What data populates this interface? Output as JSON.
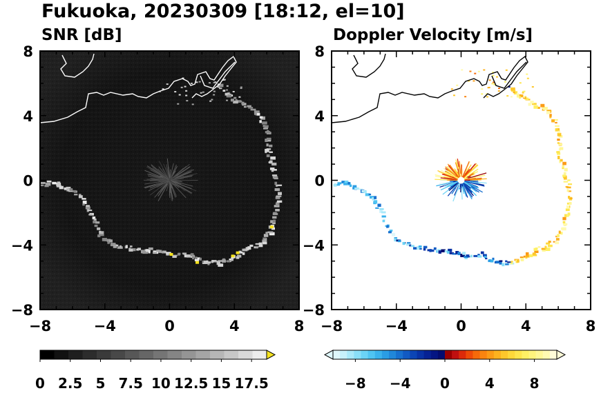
{
  "figure": {
    "title": "Fukuoka, 20230309 [18:12, el=10]"
  },
  "chart_data": [
    {
      "type": "heatmap",
      "title": "SNR [dB]",
      "xlim": [
        -8,
        8
      ],
      "ylim": [
        -8,
        8
      ],
      "xticks": [
        "−8",
        "−4",
        "0",
        "4",
        "8"
      ],
      "yticks": [
        "8",
        "4",
        "0",
        "−4",
        "−8"
      ],
      "colorbar": {
        "min": 0,
        "max": 18.75,
        "step": 1.25,
        "tick_labels": [
          "0",
          "2.5",
          "5",
          "7.5",
          "10",
          "12.5",
          "15",
          "17.5"
        ],
        "tick_values": [
          0,
          2.5,
          5,
          7.5,
          10,
          12.5,
          15,
          17.5
        ],
        "extend": "max",
        "extend_color": "#f5e21e",
        "colors": [
          "#000000",
          "#111111",
          "#1e1e1e",
          "#2c2c2c",
          "#3a3a3a",
          "#484848",
          "#575757",
          "#666666",
          "#757575",
          "#858585",
          "#959595",
          "#a5a5a5",
          "#b6b6b6",
          "#c7c7c7",
          "#d9d9d9",
          "#ececec"
        ]
      }
    },
    {
      "type": "heatmap",
      "title": "Doppler Velocity [m/s]",
      "xlim": [
        -8,
        8
      ],
      "ylim": [
        -8,
        8
      ],
      "xticks": [
        "−8",
        "−4",
        "0",
        "4",
        "8"
      ],
      "yticks": [
        "8",
        "4",
        "0",
        "−4",
        "−8"
      ],
      "colorbar": {
        "min": -10,
        "max": 10,
        "step": 0.5,
        "tick_labels": [
          "−8",
          "−4",
          "0",
          "4",
          "8"
        ],
        "tick_values": [
          -8,
          -4,
          0,
          4,
          8
        ],
        "extend": "both",
        "extend_color_low": "#dff7fb",
        "extend_color_high": "#fffcd8",
        "colors": [
          "#dff7fb",
          "#c7f1fb",
          "#a9e9fa",
          "#8adff8",
          "#6bd3f6",
          "#4fc4f2",
          "#3ab2ec",
          "#2a9de4",
          "#2087da",
          "#1770cf",
          "#115ac3",
          "#0c45b5",
          "#0832a5",
          "#062294",
          "#041583",
          "#030c6f",
          "#9a0000",
          "#c01010",
          "#dd2a0a",
          "#ee4a08",
          "#f56a0a",
          "#f9840f",
          "#fb9b16",
          "#fcb21f",
          "#fdc72b",
          "#fed83a",
          "#fee54d",
          "#fef064",
          "#fff47d",
          "#fff797",
          "#fffab2",
          "#fffcd8"
        ]
      }
    }
  ]
}
